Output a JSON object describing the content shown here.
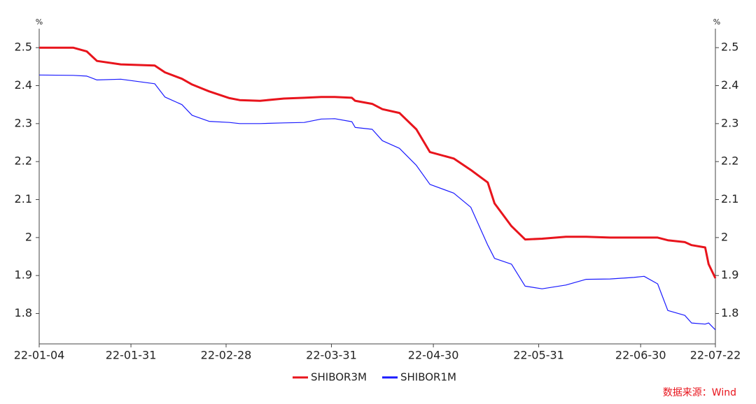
{
  "chart_data": {
    "type": "line",
    "y_unit": "%",
    "y2_unit": "%",
    "source": "数据来源：Wind",
    "x": [
      "22-01-04",
      "22-01-14",
      "22-01-18",
      "22-01-21",
      "22-01-28",
      "22-02-07",
      "22-02-10",
      "22-02-15",
      "22-02-18",
      "22-02-23",
      "22-03-01",
      "22-03-04",
      "22-03-10",
      "22-03-17",
      "22-03-23",
      "22-03-28",
      "22-04-01",
      "22-04-06",
      "22-04-07",
      "22-04-12",
      "22-04-15",
      "22-04-20",
      "22-04-25",
      "22-04-29",
      "22-05-06",
      "22-05-11",
      "22-05-16",
      "22-05-18",
      "22-05-23",
      "22-05-27",
      "22-06-01",
      "22-06-08",
      "22-06-14",
      "22-06-21",
      "22-06-28",
      "22-07-01",
      "22-07-05",
      "22-07-08",
      "22-07-13",
      "22-07-15",
      "22-07-19",
      "22-07-20",
      "22-07-22"
    ],
    "series": [
      {
        "name": "SHIBOR3M",
        "color": "#e8141c",
        "values": [
          2.5,
          2.5,
          2.49,
          2.465,
          2.456,
          2.453,
          2.435,
          2.418,
          2.403,
          2.385,
          2.367,
          2.362,
          2.36,
          2.366,
          2.368,
          2.37,
          2.37,
          2.368,
          2.36,
          2.352,
          2.338,
          2.328,
          2.285,
          2.225,
          2.208,
          2.178,
          2.145,
          2.09,
          2.03,
          1.995,
          1.997,
          2.002,
          2.002,
          2.0,
          2.0,
          2.0,
          2.0,
          1.993,
          1.988,
          1.98,
          1.974,
          1.93,
          1.893
        ]
      },
      {
        "name": "SHIBOR1M",
        "color": "#1a1aff",
        "values": [
          2.428,
          2.427,
          2.425,
          2.415,
          2.417,
          2.405,
          2.37,
          2.35,
          2.322,
          2.306,
          2.303,
          2.3,
          2.3,
          2.302,
          2.303,
          2.312,
          2.313,
          2.305,
          2.29,
          2.285,
          2.255,
          2.235,
          2.19,
          2.14,
          2.117,
          2.08,
          1.98,
          1.945,
          1.93,
          1.872,
          1.865,
          1.875,
          1.89,
          1.891,
          1.895,
          1.898,
          1.878,
          1.808,
          1.795,
          1.775,
          1.772,
          1.775,
          1.757
        ]
      }
    ],
    "xlim": [
      "22-01-04",
      "22-07-22"
    ],
    "xticks": [
      "22-01-04",
      "22-01-31",
      "22-02-28",
      "22-03-31",
      "22-04-30",
      "22-05-31",
      "22-06-30",
      "22-07-22"
    ],
    "ylim": [
      1.72,
      2.55
    ],
    "yticks": [
      1.8,
      1.9,
      2,
      2.1,
      2.2,
      2.3,
      2.4,
      2.5
    ],
    "y2lim": [
      1.72,
      2.55
    ],
    "y2ticks": [
      1.8,
      1.9,
      2,
      2.1,
      2.2,
      2.3,
      2.4,
      2.5
    ],
    "grid": false
  }
}
